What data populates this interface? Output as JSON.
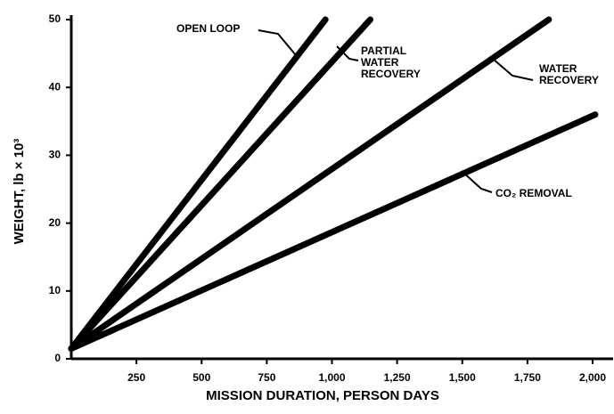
{
  "chart_data": {
    "type": "line",
    "xlabel": "MISSION DURATION, PERSON DAYS",
    "ylabel": "WEIGHT, lb × 10³",
    "xlim": [
      0,
      2000
    ],
    "ylim": [
      0,
      50
    ],
    "xticks": [
      {
        "value": 250,
        "label": "250"
      },
      {
        "value": 500,
        "label": "500"
      },
      {
        "value": 750,
        "label": "750"
      },
      {
        "value": 1000,
        "label": "1,000"
      },
      {
        "value": 1250,
        "label": "1,250"
      },
      {
        "value": 1500,
        "label": "1,500"
      },
      {
        "value": 1750,
        "label": "1,750"
      },
      {
        "value": 2000,
        "label": "2,000"
      }
    ],
    "yticks": [
      0,
      10,
      20,
      30,
      40,
      50
    ],
    "series": [
      {
        "name": "OPEN LOOP",
        "color": "#000000",
        "x": [
          0,
          975
        ],
        "values": [
          1.5,
          50
        ]
      },
      {
        "name": "PARTIAL WATER RECOVERY",
        "color": "#000000",
        "x": [
          0,
          1147
        ],
        "values": [
          1.5,
          50
        ]
      },
      {
        "name": "WATER RECOVERY",
        "color": "#000000",
        "x": [
          0,
          1832
        ],
        "values": [
          1.5,
          50
        ]
      },
      {
        "name": "CO₂ REMOVAL",
        "color": "#000000",
        "x": [
          0,
          2010
        ],
        "values": [
          1.5,
          36
        ]
      }
    ]
  }
}
